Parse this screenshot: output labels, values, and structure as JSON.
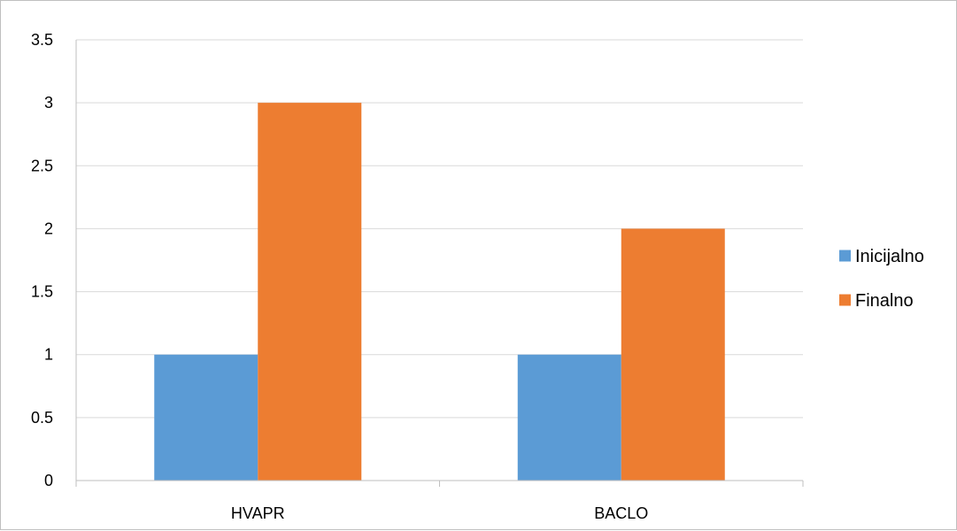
{
  "chart_data": {
    "type": "bar",
    "categories": [
      "HVAPR",
      "BACLO"
    ],
    "series": [
      {
        "name": "Inicijalno",
        "values": [
          1,
          1
        ],
        "color": "#5B9BD5"
      },
      {
        "name": "Finalno",
        "values": [
          3,
          2
        ],
        "color": "#ED7D31"
      }
    ],
    "ylim": [
      0,
      3.5
    ],
    "yticks": [
      "0",
      "0.5",
      "1",
      "1.5",
      "2",
      "2.5",
      "3",
      "3.5"
    ],
    "grid": true,
    "legend_position": "right",
    "gridline_color": "#d9d9d9",
    "axis_color": "#bfbfbf"
  }
}
